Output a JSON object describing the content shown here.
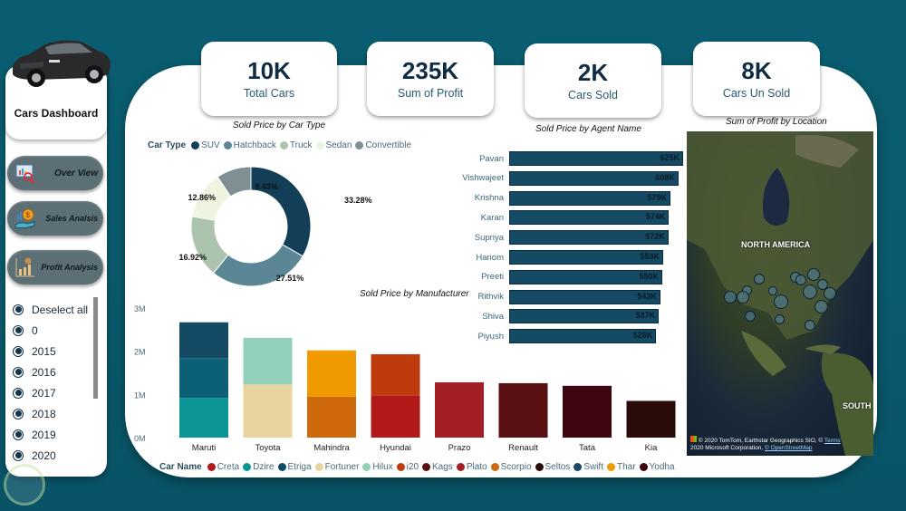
{
  "sidebar": {
    "title": "Cars Dashboard",
    "nav": [
      {
        "label": "Over View",
        "icon": "overview-icon"
      },
      {
        "label": "Sales Analsis",
        "icon": "sales-icon"
      },
      {
        "label": "Profit Analysis",
        "icon": "profit-icon"
      }
    ],
    "year_slicer": {
      "items": [
        "Deselect all",
        "0",
        "2015",
        "2016",
        "2017",
        "2018",
        "2019",
        "2020"
      ]
    }
  },
  "kpis": [
    {
      "value": "10K",
      "label": "Total Cars"
    },
    {
      "value": "235K",
      "label": "Sum of Profit"
    },
    {
      "value": "2K",
      "label": "Cars Sold"
    },
    {
      "value": "8K",
      "label": "Cars Un Sold"
    }
  ],
  "chart_data": [
    {
      "type": "pie",
      "title": "Sold Price by Car Type",
      "legend_title": "Car Type",
      "legend_position": "top",
      "slices": [
        {
          "label": "SUV",
          "value": 33.28,
          "color": "#123f57"
        },
        {
          "label": "Hatchback",
          "value": 27.51,
          "color": "#5a8696"
        },
        {
          "label": "Truck",
          "value": 16.92,
          "color": "#acc4ae"
        },
        {
          "label": "Sedan",
          "value": 12.86,
          "color": "#eef4df"
        },
        {
          "label": "Convertible",
          "value": 9.43,
          "color": "#7f8f94"
        }
      ],
      "data_labels": [
        "33.28%",
        "27.51%",
        "16.92%",
        "12.86%",
        "9.43%"
      ]
    },
    {
      "type": "bar",
      "orientation": "horizontal",
      "title": "Sold Price by  Agent Name",
      "categories": [
        "Pavan",
        "Vishwajeet",
        "Krishna",
        "Karan",
        "Supriya",
        "Hariom",
        "Preeti",
        "Rithvik",
        "Shiva",
        "Piyush"
      ],
      "values": [
        625,
        608,
        579,
        574,
        572,
        553,
        550,
        543,
        537,
        528
      ],
      "value_labels": [
        "625K",
        "608K",
        "579K",
        "574K",
        "572K",
        "553K",
        "550K",
        "543K",
        "537K",
        "528K"
      ],
      "unit": "K",
      "color": "#144a63"
    },
    {
      "type": "bar",
      "stacked": true,
      "title": "Sold Price by Manufacturer",
      "categories": [
        "Maruti",
        "Toyota",
        "Mahindra",
        "Hyundai",
        "Prazo",
        "Renault",
        "Tata",
        "Kia"
      ],
      "yticks": [
        "0M",
        "1M",
        "2M",
        "3M"
      ],
      "ylim": [
        0,
        3
      ],
      "yunit": "M",
      "legend_title": "Car Name",
      "legend_position": "bottom",
      "legend": [
        {
          "label": "Creta",
          "color": "#b21a1a"
        },
        {
          "label": "Dzire",
          "color": "#0c9596"
        },
        {
          "label": "Etriga",
          "color": "#0b4d66"
        },
        {
          "label": "Fortuner",
          "color": "#e8d49f"
        },
        {
          "label": "Hilux",
          "color": "#92d1b9"
        },
        {
          "label": "i20",
          "color": "#bf3a0c"
        },
        {
          "label": "Kags",
          "color": "#5a0f13"
        },
        {
          "label": "Plato",
          "color": "#a11f25"
        },
        {
          "label": "Scorpio",
          "color": "#cf6a0c"
        },
        {
          "label": "Seltos",
          "color": "#2a0c0a"
        },
        {
          "label": "Swift",
          "color": "#144a63"
        },
        {
          "label": "Thar",
          "color": "#f09a00"
        },
        {
          "label": "Yodha",
          "color": "#3e0610"
        }
      ],
      "series": [
        {
          "name": "Dzire",
          "values": [
            0.92,
            0,
            0,
            0,
            0,
            0,
            0,
            0
          ],
          "color": "#0c9596"
        },
        {
          "name": "Swift",
          "values": [
            0.92,
            0,
            0,
            0,
            0,
            0,
            0,
            0
          ],
          "color": "#0b5f76"
        },
        {
          "name": "Etriga",
          "values": [
            0.83,
            0,
            0,
            0,
            0,
            0,
            0,
            0
          ],
          "color": "#144a63"
        },
        {
          "name": "Fortuner",
          "values": [
            0,
            1.23,
            0,
            0,
            0,
            0,
            0,
            0
          ],
          "color": "#e8d49f"
        },
        {
          "name": "Hilux",
          "values": [
            0,
            1.08,
            0,
            0,
            0,
            0,
            0,
            0
          ],
          "color": "#92d1b9"
        },
        {
          "name": "Scorpio",
          "values": [
            0,
            0,
            0.95,
            0,
            0,
            0,
            0,
            0
          ],
          "color": "#cf6a0c"
        },
        {
          "name": "Thar",
          "values": [
            0,
            0,
            1.07,
            0,
            0,
            0,
            0,
            0
          ],
          "color": "#f09a00"
        },
        {
          "name": "Creta",
          "values": [
            0,
            0,
            0,
            0.98,
            0,
            0,
            0,
            0
          ],
          "color": "#b21a1a"
        },
        {
          "name": "i20",
          "values": [
            0,
            0,
            0,
            0.95,
            0,
            0,
            0,
            0
          ],
          "color": "#bf3a0c"
        },
        {
          "name": "Plato",
          "values": [
            0,
            0,
            0,
            0,
            1.28,
            0,
            0,
            0
          ],
          "color": "#a11f25"
        },
        {
          "name": "Kags",
          "values": [
            0,
            0,
            0,
            0,
            0,
            1.26,
            0,
            0
          ],
          "color": "#5a0f13"
        },
        {
          "name": "Yodha",
          "values": [
            0,
            0,
            0,
            0,
            0,
            0,
            1.2,
            0
          ],
          "color": "#3e0610"
        },
        {
          "name": "Seltos",
          "values": [
            0,
            0,
            0,
            0,
            0,
            0,
            0,
            0.85
          ],
          "color": "#2a0c0a"
        }
      ]
    }
  ],
  "map": {
    "title": "Sum of Profit by Location",
    "labels": [
      "NORTH AMERICA",
      "SOUTH"
    ],
    "attribution_line1": "© 2020 TomTom, Earthstar Geographics SIO, ©",
    "attribution_terms": "Terms",
    "attribution_line2": "2020 Microsoft Corporation,",
    "attribution_osm": "© OpenStreetMap"
  }
}
